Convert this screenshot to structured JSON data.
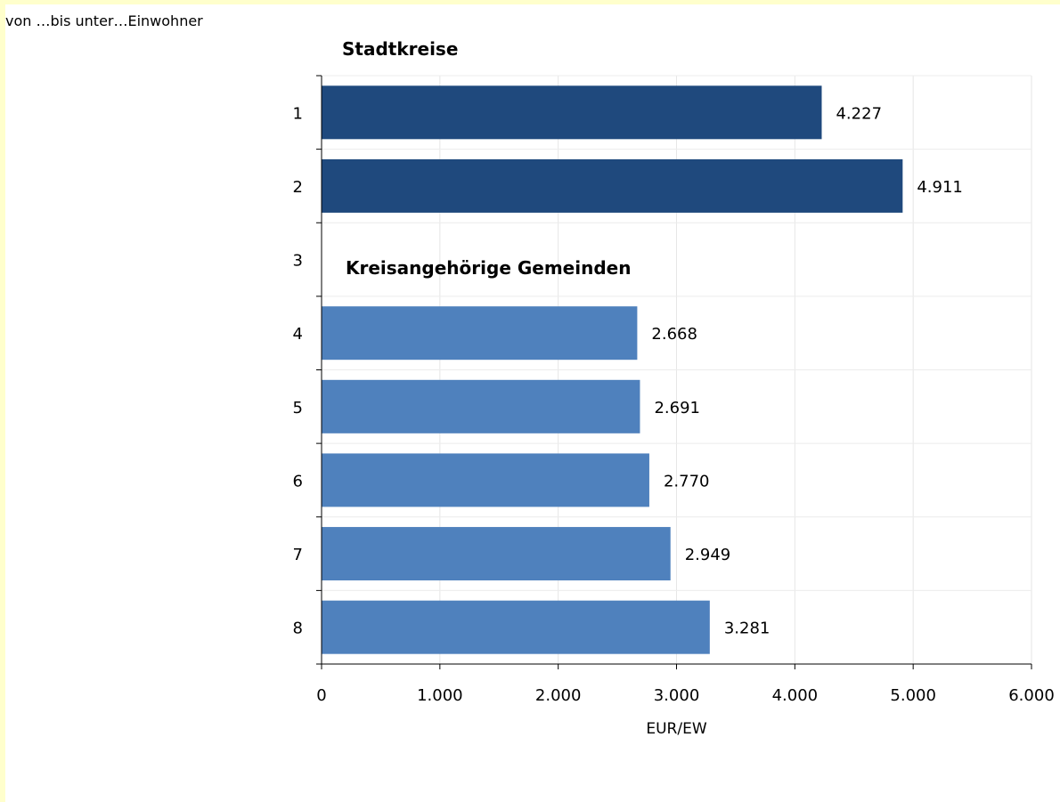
{
  "header": {
    "subtitle": "von …bis unter…Einwohner"
  },
  "chart_data": {
    "type": "bar",
    "orientation": "horizontal",
    "categories": [
      "1",
      "2",
      "3",
      "4",
      "5",
      "6",
      "7",
      "8"
    ],
    "values": [
      4227,
      4911,
      null,
      2668,
      2691,
      2770,
      2949,
      3281
    ],
    "value_labels": [
      "4.227",
      "4.911",
      "",
      "2.668",
      "2.691",
      "2.770",
      "2.949",
      "3.281"
    ],
    "group_titles": [
      {
        "text": "Stadtkreise",
        "before_category": "1"
      },
      {
        "text": "Kreisangehörige Gemeinden",
        "before_category": "4"
      }
    ],
    "bar_colors": [
      "#1f497d",
      "#1f497d",
      null,
      "#4f81bd",
      "#4f81bd",
      "#4f81bd",
      "#4f81bd",
      "#4f81bd"
    ],
    "xlabel": "EUR/EW",
    "xlim": [
      0,
      6000
    ],
    "xticks": [
      0,
      1000,
      2000,
      3000,
      4000,
      5000,
      6000
    ],
    "xtick_labels": [
      "0",
      "1.000",
      "2.000",
      "3.000",
      "4.000",
      "5.000",
      "6.000"
    ],
    "grid": true
  }
}
